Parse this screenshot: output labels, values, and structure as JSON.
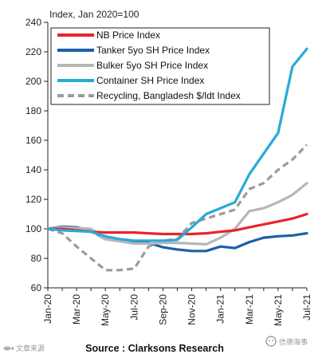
{
  "chart_data": {
    "type": "line",
    "unit_label": "Index, Jan 2020=100",
    "ylim": [
      60,
      240
    ],
    "yticks": [
      60,
      80,
      100,
      120,
      140,
      160,
      180,
      200,
      220,
      240
    ],
    "x": [
      "Jan-20",
      "Feb-20",
      "Mar-20",
      "Apr-20",
      "May-20",
      "Jun-20",
      "Jul-20",
      "Aug-20",
      "Sep-20",
      "Oct-20",
      "Nov-20",
      "Dec-20",
      "Jan-21",
      "Feb-21",
      "Mar-21",
      "Apr-21",
      "May-21",
      "Jun-21",
      "Jul-21"
    ],
    "xtick_labels": [
      "Jan-20",
      "Mar-20",
      "May-20",
      "Jul-20",
      "Sep-20",
      "Nov-20",
      "Jan-21",
      "Mar-21",
      "May-21",
      "Jul-21"
    ],
    "grid": false,
    "legend_position": "top-left",
    "series": [
      {
        "name": "NB Price Index",
        "color": "#e8242b",
        "dash": false,
        "values": [
          100,
          100,
          99,
          98,
          97.5,
          97.5,
          97.5,
          97,
          96.5,
          96.5,
          96.5,
          97,
          98,
          99,
          101,
          103,
          105,
          107,
          110
        ]
      },
      {
        "name": "Tanker 5yo SH Price Index",
        "color": "#1d5fa8",
        "dash": false,
        "values": [
          100,
          101.5,
          101,
          99,
          93,
          92,
          91,
          90.5,
          87.5,
          86,
          85,
          85,
          88,
          87,
          91,
          94,
          95,
          95.5,
          97
        ]
      },
      {
        "name": "Bulker 5yo SH Price Index",
        "color": "#b7b7b7",
        "dash": false,
        "values": [
          100,
          101,
          100.5,
          100,
          93,
          91.5,
          90,
          90,
          90.5,
          90.5,
          90,
          89.5,
          94,
          100,
          112,
          114,
          118,
          123,
          131
        ]
      },
      {
        "name": "Container SH Price Index",
        "color": "#29a9d8",
        "dash": false,
        "values": [
          100,
          99,
          98.5,
          98,
          95,
          93,
          92,
          92,
          92,
          92.5,
          101,
          110,
          114,
          118,
          137,
          151,
          165,
          210,
          222
        ]
      },
      {
        "name": "Recycling, Bangladesh $/ldt Index",
        "color": "#9b9b9b",
        "dash": true,
        "values": [
          100,
          97,
          88,
          80,
          72,
          72,
          73,
          88,
          92,
          93,
          104,
          107,
          110,
          113,
          127,
          131,
          140,
          147,
          157
        ]
      }
    ]
  },
  "footer": {
    "source": "Source : Clarksons Research",
    "watermark_left": "文章来源",
    "watermark_right": "信德海事"
  }
}
